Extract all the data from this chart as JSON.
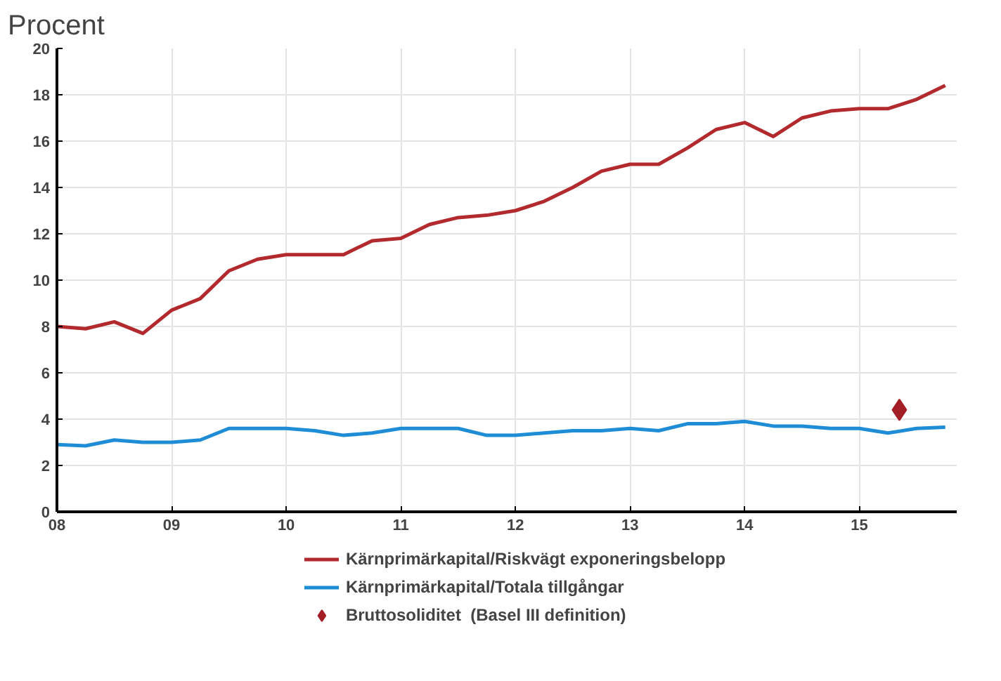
{
  "chart_data": {
    "type": "line",
    "ylabel": "Procent",
    "x": [
      2008,
      2008.25,
      2008.5,
      2008.75,
      2009,
      2009.25,
      2009.5,
      2009.75,
      2010,
      2010.25,
      2010.5,
      2010.75,
      2011,
      2011.25,
      2011.5,
      2011.75,
      2012,
      2012.25,
      2012.5,
      2012.75,
      2013,
      2013.25,
      2013.5,
      2013.75,
      2014,
      2014.25,
      2014.5,
      2014.75,
      2015,
      2015.25,
      2015.5,
      2015.75
    ],
    "series": [
      {
        "name": "Kärnprimärkapital/Riskvägt exponeringsbelopp",
        "color": "#b22a2e",
        "values": [
          8.0,
          7.9,
          8.2,
          7.7,
          8.7,
          9.2,
          10.4,
          10.9,
          11.1,
          11.1,
          11.1,
          11.7,
          11.8,
          12.4,
          12.7,
          12.8,
          13.0,
          13.4,
          14.0,
          14.7,
          15.0,
          15.0,
          15.7,
          16.5,
          16.8,
          16.2,
          17.0,
          17.3,
          17.4,
          17.4,
          17.8,
          18.4
        ]
      },
      {
        "name": "Kärnprimärkapital/Totala tillgångar",
        "color": "#1f8dd6",
        "values": [
          2.9,
          2.85,
          3.1,
          3.0,
          3.0,
          3.1,
          3.6,
          3.6,
          3.6,
          3.5,
          3.3,
          3.4,
          3.6,
          3.6,
          3.6,
          3.3,
          3.3,
          3.4,
          3.5,
          3.5,
          3.6,
          3.5,
          3.8,
          3.8,
          3.9,
          3.7,
          3.7,
          3.6,
          3.6,
          3.4,
          3.6,
          3.65
        ]
      },
      {
        "name": "Bruttosoliditet  (Basel III definition)",
        "type": "scatter",
        "marker": "diamond",
        "color": "#a31f25",
        "x": [
          2015.35
        ],
        "values": [
          4.4
        ]
      }
    ],
    "xlim": [
      2008,
      2015.85
    ],
    "xticks": [
      {
        "value": 2008,
        "label": "08"
      },
      {
        "value": 2009,
        "label": "09"
      },
      {
        "value": 2010,
        "label": "10"
      },
      {
        "value": 2011,
        "label": "11"
      },
      {
        "value": 2012,
        "label": "12"
      },
      {
        "value": 2013,
        "label": "13"
      },
      {
        "value": 2014,
        "label": "14"
      },
      {
        "value": 2015,
        "label": "15"
      }
    ],
    "ylim": [
      0,
      20
    ],
    "yticks": [
      0,
      2,
      4,
      6,
      8,
      10,
      12,
      14,
      16,
      18,
      20
    ],
    "grid": true,
    "legend": "bottom",
    "marker": "none",
    "line_style": "solid"
  }
}
